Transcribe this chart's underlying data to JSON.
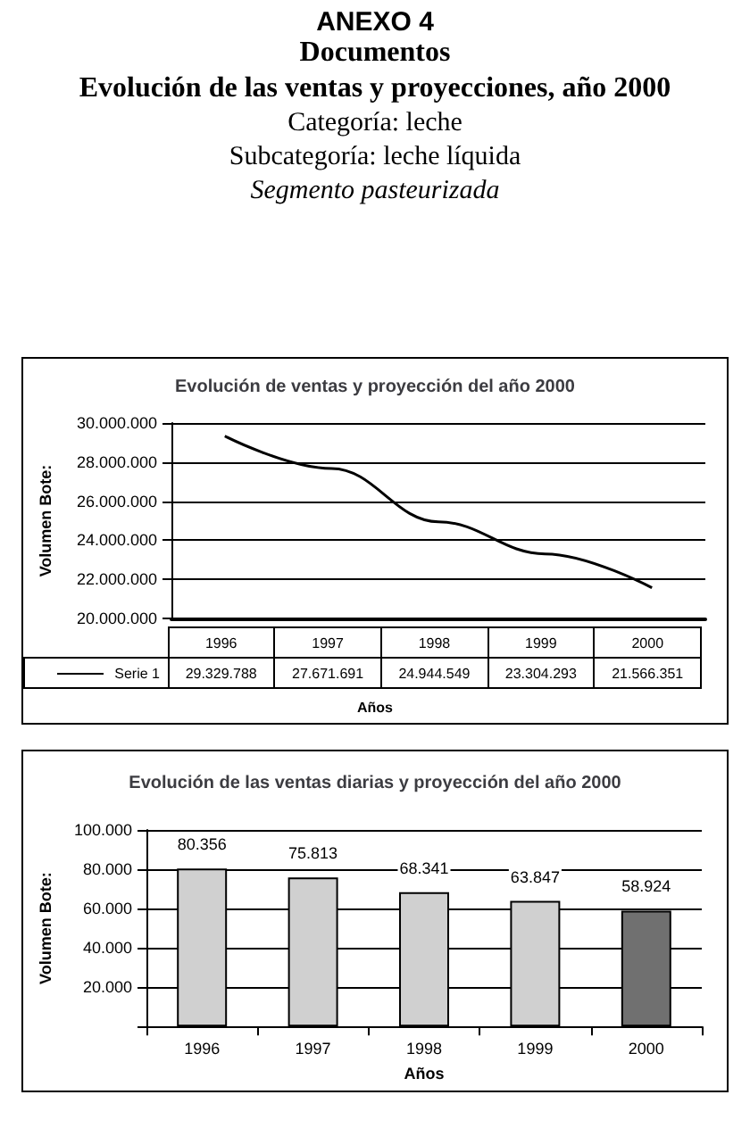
{
  "chart_data": [
    {
      "type": "other",
      "title": "ANEXO 4",
      "subtitle": "Documentos",
      "annotations": [
        "Evolución de las ventas y proyecciones, año 2000",
        "Categoría: leche",
        "Subcategoría: leche líquida",
        "Segmento pasteurizada"
      ]
    },
    {
      "type": "line",
      "title": "Evolución de ventas y proyección del año 2000",
      "xlabel": "Años",
      "ylabel": "Volumen Bote:",
      "categories": [
        "1996",
        "1997",
        "1998",
        "1999",
        "2000"
      ],
      "series": [
        {
          "name": "Serie 1",
          "color": "#000000",
          "values": [
            29329788,
            27671691,
            24944549,
            23304293,
            21566351
          ],
          "value_labels": [
            "29.329.788",
            "27.671.691",
            "24.944.549",
            "23.304.293",
            "21.566.351"
          ]
        }
      ],
      "ylim": [
        20000000,
        30000000
      ],
      "yticks": [
        {
          "value": 20000000,
          "label": "20.000.000"
        },
        {
          "value": 22000000,
          "label": "22.000.000"
        },
        {
          "value": 24000000,
          "label": "24.000.000"
        },
        {
          "value": 26000000,
          "label": "26.000.000"
        },
        {
          "value": 28000000,
          "label": "28.000.000"
        },
        {
          "value": 30000000,
          "label": "30.000.000"
        }
      ],
      "grid": "y",
      "marker": "none",
      "legend": "bottom left"
    },
    {
      "type": "bar",
      "title": "Evolución de las ventas diarias y proyección del año 2000",
      "xlabel": "Años",
      "ylabel": "Volumen Bote:",
      "categories": [
        "1996",
        "1997",
        "1998",
        "1999",
        "2000"
      ],
      "values": [
        80356,
        75813,
        68341,
        63847,
        58924
      ],
      "value_labels": [
        "80.356",
        "75.813",
        "68.341",
        "63.847",
        "58.924"
      ],
      "colors": [
        "#d0d0d0",
        "#d0d0d0",
        "#d0d0d0",
        "#d0d0d0",
        "#707070"
      ],
      "ylim": [
        0,
        100000
      ],
      "yticks": [
        {
          "value": 0,
          "label": null
        },
        {
          "value": 20000,
          "label": "20.000"
        },
        {
          "value": 40000,
          "label": "40.000"
        },
        {
          "value": 60000,
          "label": "60.000"
        },
        {
          "value": 80000,
          "label": "80.000"
        },
        {
          "value": 100000,
          "label": "100.000"
        }
      ],
      "grid": "y"
    }
  ]
}
